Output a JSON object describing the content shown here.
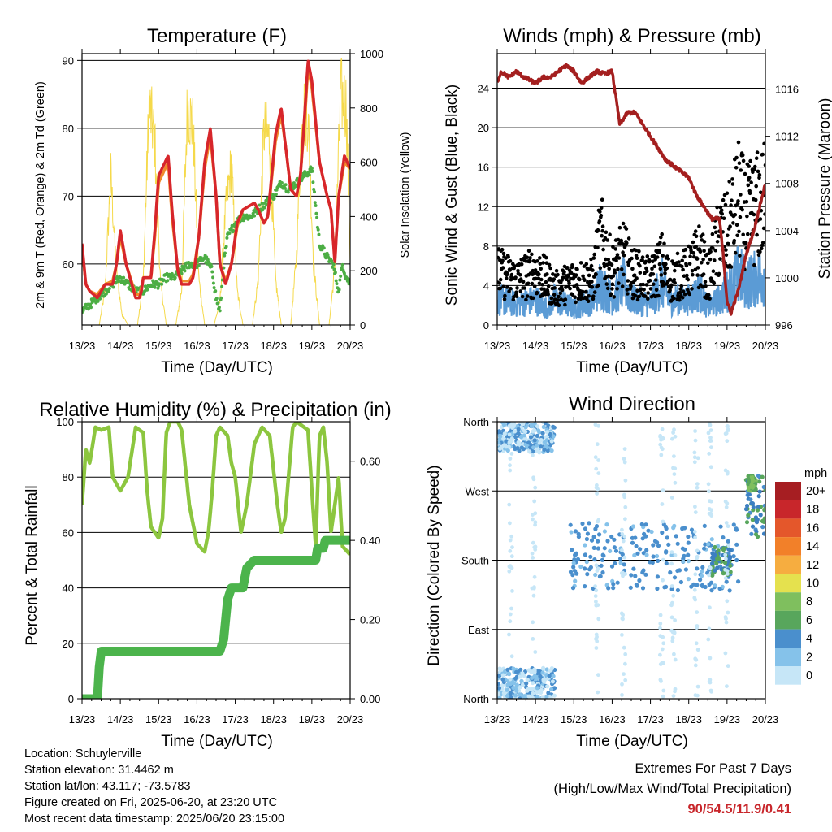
{
  "x_ticks": [
    "13/23",
    "14/23",
    "15/23",
    "16/23",
    "17/23",
    "18/23",
    "19/23",
    "20/23"
  ],
  "colors": {
    "temp2m": "#d7262b",
    "temp9m": "#f08a2a",
    "dewpoint": "#4cae44",
    "solar": "#f5d94a",
    "wind": "#5b9bd5",
    "gust": "#000000",
    "pressure": "#a41f1f",
    "rh": "#8cc63f",
    "precip": "#4cb44c",
    "extremes": "#c8262b"
  },
  "wind_speed_colors": [
    "#c6e6f7",
    "#85c2ea",
    "#4a8fcd",
    "#3c7fc1",
    "#58a65c",
    "#7fbf5e",
    "#e5e14e",
    "#f6ad40",
    "#f28029",
    "#e4572b",
    "#c8262b",
    "#a61e22"
  ],
  "panels": {
    "temperature": {
      "title": "Temperature (F)",
      "xlabel": "Time (Day/UTC)",
      "ylabel_left": "2m & 9m T (Red, Orange) & 2m Td (Green)",
      "ylabel_right": "Solar Insolation (Yellow)",
      "yticks_left": [
        "60",
        "70",
        "80",
        "90"
      ],
      "yticks_right": [
        "0",
        "200",
        "400",
        "600",
        "800",
        "1000"
      ]
    },
    "winds": {
      "title": "Winds (mph) & Pressure (mb)",
      "xlabel": "Time (Day/UTC)",
      "ylabel_left": "Sonic Wind & Gust (Blue, Black)",
      "ylabel_right": "Station Pressure (Maroon)",
      "yticks_left": [
        "0",
        "4",
        "8",
        "12",
        "16",
        "20",
        "24"
      ],
      "yticks_right": [
        "996",
        "1000",
        "1004",
        "1008",
        "1012",
        "1016"
      ]
    },
    "humidity": {
      "title": "Relative Humidity (%) & Precipitation (in)",
      "xlabel": "Time (Day/UTC)",
      "ylabel_left": "Percent & Total Rainfall",
      "yticks_left": [
        "0",
        "20",
        "40",
        "60",
        "80",
        "100"
      ],
      "yticks_right": [
        "0.00",
        "0.20",
        "0.40",
        "0.60"
      ]
    },
    "direction": {
      "title": "Wind Direction",
      "xlabel": "Time (Day/UTC)",
      "ylabel_left": "Direction (Colored By Speed)",
      "yticks_left": [
        "North",
        "East",
        "South",
        "West",
        "North"
      ],
      "colorbar_title": "mph",
      "colorbar_labels": [
        "0",
        "2",
        "4",
        "6",
        "8",
        "10",
        "12",
        "14",
        "16",
        "18",
        "20+"
      ]
    }
  },
  "chart_data": [
    {
      "type": "line",
      "title": "Temperature (F)",
      "xlabel": "Time (Day/UTC)",
      "ylabel": "2m & 9m T (Red, Orange) & 2m Td (Green)",
      "y2label": "Solar Insolation (Yellow)",
      "xlim": [
        0,
        7
      ],
      "ylim": [
        51,
        91
      ],
      "y2lim": [
        0,
        1000
      ],
      "grid": true,
      "series": [
        {
          "name": "2m T",
          "axis": "left",
          "x": [
            0,
            0.1,
            0.2,
            0.4,
            0.6,
            0.8,
            0.9,
            1.0,
            1.15,
            1.4,
            1.5,
            1.55,
            1.6,
            1.8,
            1.9,
            2.0,
            2.25,
            2.35,
            2.5,
            2.6,
            2.8,
            2.9,
            3.05,
            3.2,
            3.35,
            3.5,
            3.6,
            3.75,
            3.9,
            4.05,
            4.2,
            4.5,
            4.6,
            4.75,
            4.85,
            5.05,
            5.2,
            5.3,
            5.45,
            5.6,
            5.7,
            5.8,
            5.9,
            6.0,
            6.2,
            6.4,
            6.5,
            6.6,
            6.7,
            6.85,
            7.0
          ],
          "y": [
            63,
            57,
            56,
            55,
            57,
            57,
            60,
            65,
            60,
            55,
            55,
            56,
            58,
            58,
            65,
            73,
            76,
            68,
            59,
            57,
            57,
            58,
            64,
            75,
            80,
            70,
            60,
            57,
            60,
            66,
            68,
            69,
            68,
            66,
            67,
            79,
            83,
            78,
            71,
            70,
            73,
            81,
            90,
            87,
            75,
            70,
            68,
            60,
            70,
            76,
            74
          ]
        },
        {
          "name": "9m T",
          "axis": "left",
          "x": [
            0,
            0.1,
            0.2,
            0.4,
            0.6,
            0.8,
            0.9,
            1.0,
            1.15,
            1.4,
            1.5,
            1.55,
            1.6,
            1.8,
            1.9,
            2.0,
            2.25,
            2.35,
            2.5,
            2.6,
            2.8,
            2.9,
            3.05,
            3.2,
            3.35,
            3.5,
            3.6,
            3.75,
            3.9,
            4.05,
            4.2,
            4.5,
            4.6,
            4.75,
            4.85,
            5.05,
            5.2,
            5.3,
            5.45,
            5.6,
            5.7,
            5.8,
            5.9,
            6.0,
            6.2,
            6.4,
            6.5,
            6.6,
            6.7,
            6.85,
            7.0
          ],
          "y": [
            62.5,
            57,
            56,
            55.5,
            57,
            57.5,
            60,
            64,
            60,
            55.5,
            55.5,
            56.5,
            58,
            58,
            64,
            72,
            75,
            67,
            59,
            57.5,
            57.5,
            58.5,
            64,
            74,
            79,
            70,
            60,
            57.5,
            60,
            65.5,
            68,
            69,
            68,
            66,
            67,
            78,
            82,
            78,
            71,
            70,
            73,
            80,
            89,
            86,
            75,
            70,
            68,
            60.5,
            70,
            75,
            74
          ]
        },
        {
          "name": "2m Td",
          "axis": "left",
          "x": [
            0,
            0.2,
            0.4,
            0.6,
            0.8,
            1.0,
            1.2,
            1.4,
            1.6,
            1.8,
            2.0,
            2.2,
            2.4,
            2.6,
            2.8,
            3.0,
            3.2,
            3.4,
            3.5,
            3.6,
            3.7,
            3.8,
            4.0,
            4.2,
            4.4,
            4.6,
            4.8,
            5.0,
            5.2,
            5.4,
            5.6,
            5.8,
            6.0,
            6.2,
            6.4,
            6.55,
            6.7,
            6.8,
            6.9,
            7.0
          ],
          "y": [
            53,
            54,
            55,
            56,
            57,
            58,
            57,
            56,
            56,
            57,
            57,
            58,
            58,
            59,
            60,
            60,
            61,
            59,
            55,
            53,
            60,
            64,
            66,
            67,
            67,
            68,
            69,
            70,
            72,
            71,
            72,
            73,
            74,
            63,
            61,
            60,
            56,
            60,
            58,
            57
          ]
        },
        {
          "name": "Solar",
          "axis": "right",
          "x": [
            0,
            0.45,
            0.6,
            0.75,
            0.9,
            1.05,
            1.2,
            1.45,
            1.6,
            1.75,
            1.9,
            2.05,
            2.2,
            2.45,
            2.6,
            2.75,
            2.9,
            3.05,
            3.2,
            3.45,
            3.6,
            3.75,
            3.9,
            4.05,
            4.2,
            4.45,
            4.6,
            4.75,
            4.9,
            5.05,
            5.2,
            5.45,
            5.6,
            5.75,
            5.9,
            6.05,
            6.2,
            6.45,
            6.6,
            6.75,
            6.9,
            7.0
          ],
          "y": [
            0,
            0,
            150,
            650,
            230,
            40,
            0,
            0,
            200,
            950,
            800,
            180,
            0,
            0,
            150,
            950,
            850,
            200,
            0,
            0,
            100,
            500,
            700,
            150,
            0,
            0,
            200,
            850,
            800,
            200,
            0,
            0,
            300,
            950,
            900,
            250,
            0,
            0,
            250,
            1000,
            950,
            300
          ]
        }
      ]
    },
    {
      "type": "line",
      "title": "Winds (mph) & Pressure (mb)",
      "xlabel": "Time (Day/UTC)",
      "ylabel": "Sonic Wind & Gust (Blue, Black)",
      "y2label": "Station Pressure (Maroon)",
      "xlim": [
        0,
        7
      ],
      "ylim": [
        0,
        27.5
      ],
      "y2lim": [
        996,
        1019
      ],
      "grid": true,
      "series": [
        {
          "name": "Sonic Wind",
          "axis": "left",
          "x": [
            0,
            0.5,
            1.0,
            1.3,
            1.5,
            2.0,
            2.5,
            2.7,
            3.0,
            3.3,
            3.5,
            4.0,
            4.3,
            4.5,
            5.0,
            5.3,
            5.5,
            5.8,
            6.0,
            6.3,
            6.5,
            7.0
          ],
          "y": [
            3,
            2.5,
            3,
            2,
            3,
            2,
            3,
            5,
            3,
            5,
            3,
            2.5,
            5,
            3,
            3,
            4,
            2,
            3,
            4,
            6,
            5,
            6
          ]
        },
        {
          "name": "Gust",
          "axis": "left",
          "x": [
            0,
            0.5,
            1.0,
            1.3,
            1.5,
            2.0,
            2.5,
            2.7,
            3.0,
            3.3,
            3.5,
            4.0,
            4.3,
            4.5,
            5.0,
            5.3,
            5.5,
            5.8,
            6.0,
            6.3,
            6.5,
            7.0
          ],
          "y": [
            6,
            5,
            6,
            5,
            4,
            5,
            5,
            10,
            6,
            8,
            6,
            5,
            7,
            5,
            6,
            8,
            5,
            10,
            10,
            14,
            12,
            14
          ]
        },
        {
          "name": "Station Pressure",
          "axis": "right",
          "x": [
            0,
            0.1,
            0.3,
            0.5,
            0.7,
            1.0,
            1.2,
            1.4,
            1.6,
            1.8,
            2.0,
            2.2,
            2.4,
            2.6,
            2.8,
            3.0,
            3.2,
            3.4,
            3.6,
            3.8,
            4.0,
            4.2,
            4.4,
            4.6,
            4.8,
            5.0,
            5.2,
            5.4,
            5.6,
            5.8,
            5.9,
            6.0,
            6.1,
            6.3,
            6.5,
            6.7,
            6.85,
            7.0
          ],
          "y": [
            1016.5,
            1017.5,
            1017,
            1017.5,
            1017,
            1016.5,
            1017,
            1017,
            1017.5,
            1018,
            1017.5,
            1016.5,
            1017,
            1017.5,
            1017.3,
            1017.5,
            1013,
            1014,
            1014,
            1013,
            1012,
            1011,
            1010,
            1009.5,
            1009,
            1008.5,
            1007,
            1006,
            1005,
            1005,
            1002,
            998,
            997,
            999,
            1002,
            1004,
            1006,
            1008
          ]
        }
      ]
    },
    {
      "type": "line",
      "title": "Relative Humidity (%) & Precipitation (in)",
      "xlabel": "Time (Day/UTC)",
      "ylabel": "Percent & Total Rainfall",
      "xlim": [
        0,
        7
      ],
      "ylim": [
        0,
        100
      ],
      "y2lim": [
        0,
        0.7
      ],
      "grid": true,
      "series": [
        {
          "name": "Relative Humidity (%)",
          "axis": "left",
          "x": [
            0,
            0.1,
            0.2,
            0.35,
            0.5,
            0.7,
            0.8,
            1.0,
            1.2,
            1.4,
            1.5,
            1.6,
            1.7,
            1.8,
            1.9,
            2.0,
            2.1,
            2.2,
            2.3,
            2.5,
            2.6,
            2.8,
            3.0,
            3.2,
            3.3,
            3.4,
            3.5,
            3.6,
            3.8,
            3.9,
            4.0,
            4.15,
            4.3,
            4.5,
            4.7,
            4.9,
            5.1,
            5.2,
            5.3,
            5.5,
            5.6,
            5.9,
            6.0,
            6.1,
            6.2,
            6.3,
            6.4,
            6.5,
            6.6,
            6.7,
            6.8,
            7.0
          ],
          "y": [
            70,
            90,
            85,
            98,
            97,
            98,
            80,
            75,
            80,
            98,
            97,
            96,
            75,
            62,
            60,
            58,
            65,
            96,
            100,
            100,
            97,
            70,
            56,
            53,
            60,
            75,
            95,
            98,
            95,
            85,
            80,
            60,
            70,
            92,
            98,
            95,
            70,
            60,
            65,
            98,
            100,
            97,
            75,
            55,
            95,
            98,
            85,
            60,
            70,
            80,
            55,
            52
          ]
        },
        {
          "name": "Total Rainfall (in)",
          "axis": "right",
          "x": [
            0,
            0.4,
            0.45,
            0.5,
            1.0,
            2.0,
            3.0,
            3.6,
            3.7,
            3.8,
            3.9,
            4.0,
            4.2,
            4.3,
            4.5,
            5.0,
            5.5,
            6.1,
            6.15,
            6.3,
            6.35,
            7.0
          ],
          "y": [
            0,
            0,
            0.08,
            0.12,
            0.12,
            0.12,
            0.12,
            0.12,
            0.15,
            0.25,
            0.28,
            0.28,
            0.28,
            0.33,
            0.35,
            0.35,
            0.35,
            0.35,
            0.38,
            0.38,
            0.4,
            0.4
          ]
        }
      ]
    },
    {
      "type": "scatter",
      "title": "Wind Direction",
      "xlabel": "Time (Day/UTC)",
      "ylabel": "Direction (Colored By Speed)",
      "xlim": [
        0,
        7
      ],
      "ylim": [
        0,
        360
      ],
      "grid": true,
      "colorbar": {
        "title": "mph",
        "levels": [
          0,
          2,
          4,
          6,
          8,
          10,
          12,
          14,
          16,
          18,
          20
        ]
      },
      "clusters": [
        {
          "x": [
            0,
            1.5
          ],
          "dir": [
            320,
            360
          ],
          "speed": [
            1,
            4
          ]
        },
        {
          "x": [
            0,
            1.5
          ],
          "dir": [
            0,
            40
          ],
          "speed": [
            1,
            4
          ]
        },
        {
          "x": [
            1.9,
            6.3
          ],
          "dir": [
            140,
            230
          ],
          "speed": [
            2,
            6
          ]
        },
        {
          "x": [
            5.6,
            6.1
          ],
          "dir": [
            160,
            200
          ],
          "speed": [
            6,
            10
          ]
        },
        {
          "x": [
            6.5,
            7.0
          ],
          "dir": [
            210,
            290
          ],
          "speed": [
            5,
            10
          ]
        },
        {
          "x": [
            6.55,
            6.75
          ],
          "dir": [
            270,
            290
          ],
          "speed": [
            9,
            11
          ]
        }
      ]
    }
  ],
  "footer": {
    "location": "Location: Schuylerville",
    "elevation": "Station elevation: 31.4462 m",
    "latlon": "Station lat/lon: 43.117; -73.5783",
    "created": "Figure created on Fri, 2025-06-20, at 23:20 UTC",
    "recent": "Most recent data timestamp: 2025/06/20 23:15:00"
  },
  "extremes": {
    "title": "Extremes For Past 7 Days",
    "subtitle": "(High/Low/Max Wind/Total Precipitation)",
    "values": "90/54.5/11.9/0.41"
  }
}
